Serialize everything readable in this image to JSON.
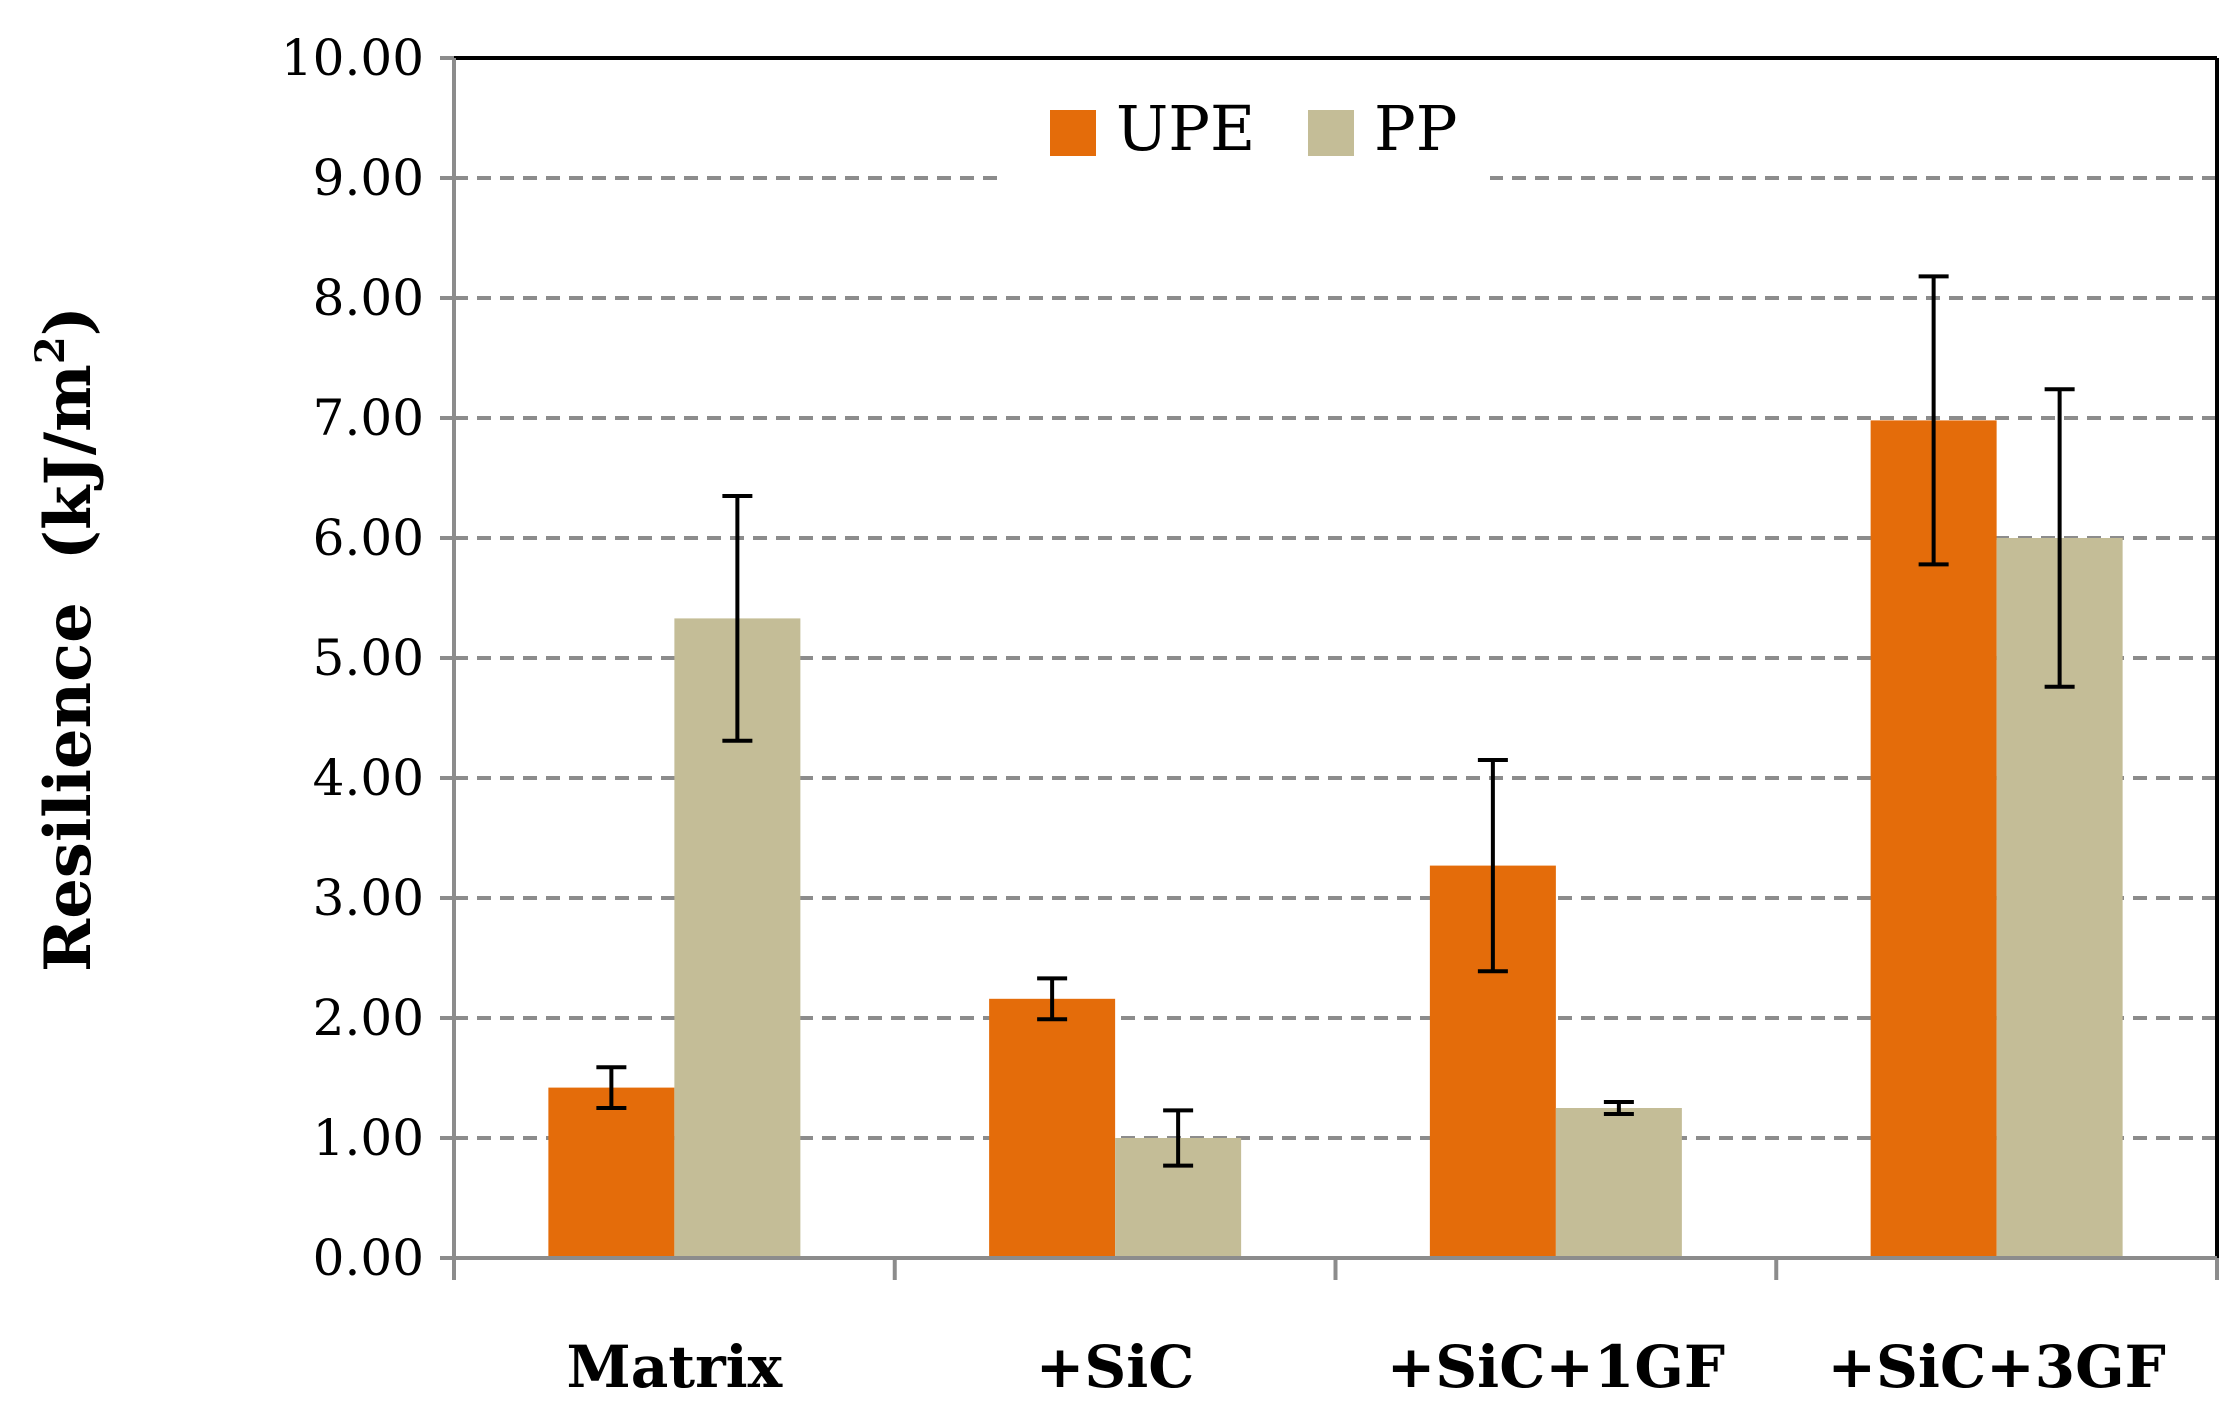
{
  "chart_data": {
    "type": "bar",
    "title": "",
    "xlabel": "",
    "ylabel": "Resilience    (kJ/m²)",
    "ylabel_parts": {
      "main": "Resilience",
      "unit_prefix": "(kJ/m",
      "unit_sup": "2",
      "unit_suffix": ")"
    },
    "ylim": [
      0,
      10
    ],
    "ytick_step": 1,
    "ytick_labels": [
      "0.00",
      "1.00",
      "2.00",
      "3.00",
      "4.00",
      "5.00",
      "6.00",
      "7.00",
      "8.00",
      "9.00",
      "10.00"
    ],
    "grid": true,
    "legend": "top-center",
    "categories": [
      "Matrix",
      "+SiC",
      "+SiC+1GF",
      "+SiC+3GF"
    ],
    "series": [
      {
        "name": "UPE",
        "color": "#e46c0a",
        "values": [
          1.42,
          2.16,
          3.27,
          6.98
        ],
        "errors": [
          0.17,
          0.17,
          0.88,
          1.2
        ]
      },
      {
        "name": "PP",
        "color": "#c4bd97",
        "values": [
          5.33,
          1.0,
          1.25,
          6.0
        ],
        "errors": [
          1.02,
          0.23,
          0.05,
          1.24
        ]
      }
    ]
  }
}
